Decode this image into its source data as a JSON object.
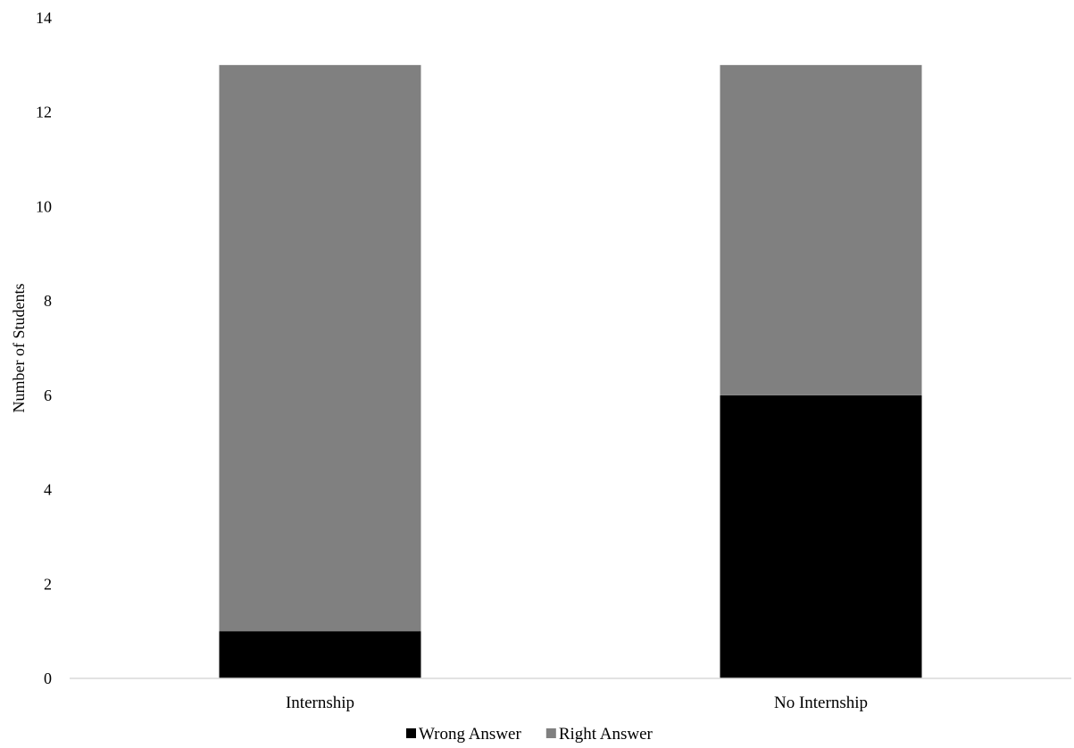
{
  "chart_data": {
    "type": "bar",
    "stacked": true,
    "title": "",
    "xlabel": "",
    "ylabel": "Number of Students",
    "categories": [
      "Internship",
      "No Internship"
    ],
    "series": [
      {
        "name": "Wrong Answer",
        "color": "#000000",
        "values": [
          1,
          6
        ]
      },
      {
        "name": "Right Answer",
        "color": "#808080",
        "values": [
          12,
          7
        ]
      }
    ],
    "ylim": [
      0,
      14
    ],
    "yticks": [
      "0",
      "2",
      "4",
      "6",
      "8",
      "10",
      "12",
      "14"
    ],
    "grid": false,
    "legend_position": "bottom"
  }
}
